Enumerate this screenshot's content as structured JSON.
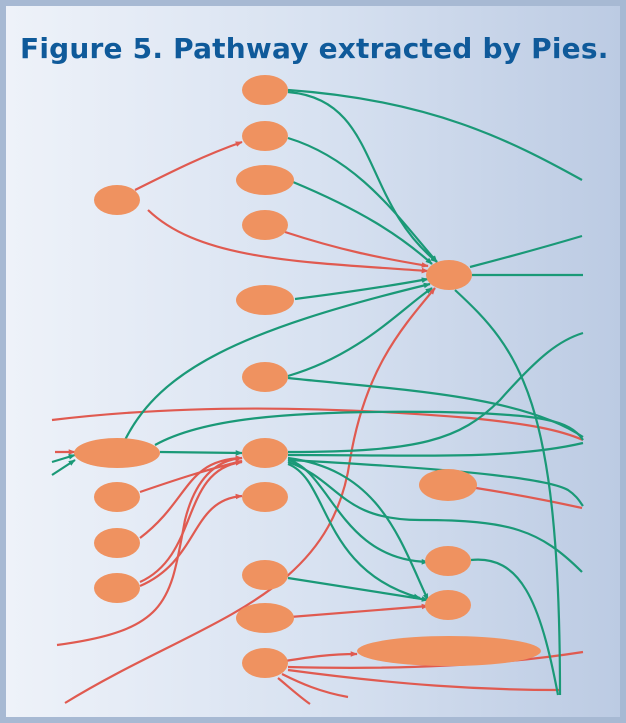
{
  "figure": {
    "title": "Figure 5. Pathway extracted by Pies."
  },
  "colors": {
    "node": "#ef9260",
    "inhibit_edge": "#e05a50",
    "activate_edge": "#1a9977",
    "title": "#0f5a9a",
    "border": "#a7b9d3"
  }
}
